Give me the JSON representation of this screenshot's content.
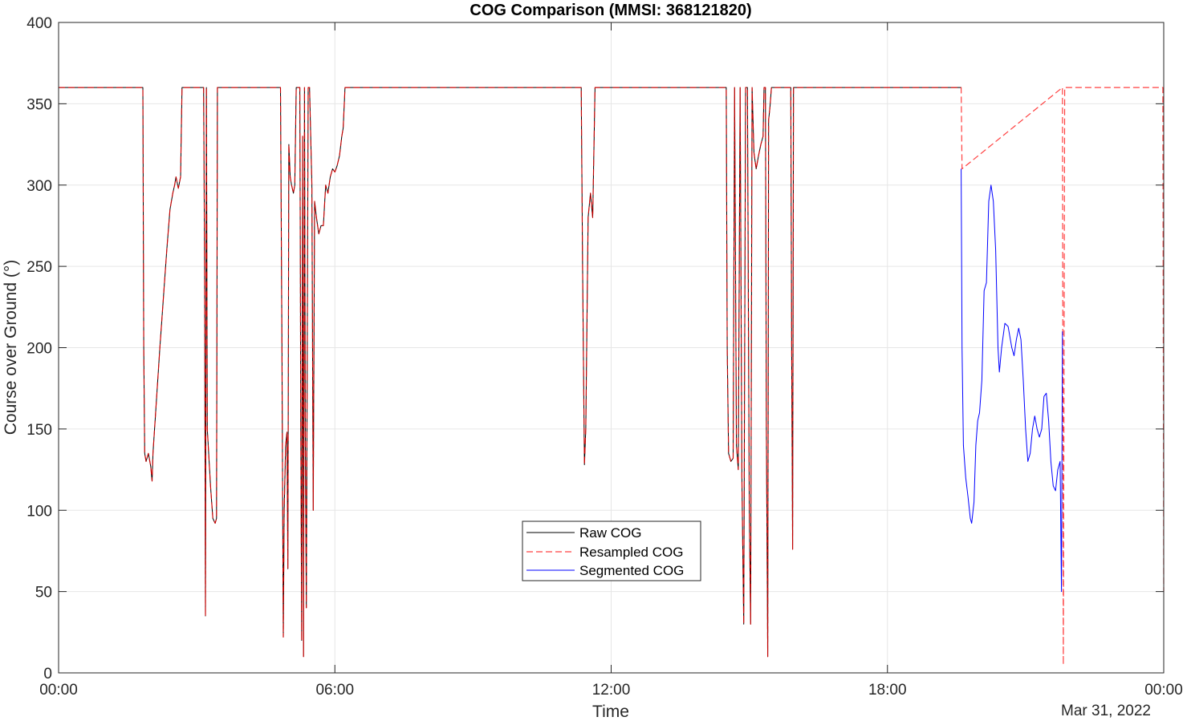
{
  "chart_data": {
    "type": "line",
    "title": "COG Comparison (MMSI: 368121820)",
    "xlabel": "Time",
    "ylabel": "Course over Ground (°)",
    "date_label": "Mar 31, 2022",
    "x_unit": "hours since 00:00 (Mar 30, 2022)",
    "xlim": [
      0,
      24
    ],
    "ylim": [
      0,
      400
    ],
    "x_ticks": [
      0,
      6,
      12,
      18,
      24
    ],
    "x_tick_labels": [
      "00:00",
      "06:00",
      "12:00",
      "18:00",
      "00:00"
    ],
    "y_ticks": [
      0,
      50,
      100,
      150,
      200,
      250,
      300,
      350,
      400
    ],
    "y_tick_labels": [
      "0",
      "50",
      "100",
      "150",
      "200",
      "250",
      "300",
      "350",
      "400"
    ],
    "grid": true,
    "legend_position": "center-bottom",
    "colors": {
      "raw": "#000000",
      "resampled": "#ff0000",
      "segmented": "#0000ff",
      "grid": "#e6e6e6",
      "axes": "#262626"
    },
    "series": [
      {
        "name": "Raw COG",
        "style": "solid",
        "color": "#000000",
        "points": [
          [
            0,
            360
          ],
          [
            1.83,
            360
          ],
          [
            1.85,
            200
          ],
          [
            1.87,
            135
          ],
          [
            1.9,
            130
          ],
          [
            1.95,
            135
          ],
          [
            2.0,
            127
          ],
          [
            2.03,
            118
          ],
          [
            2.05,
            135
          ],
          [
            2.2,
            200
          ],
          [
            2.35,
            260
          ],
          [
            2.42,
            285
          ],
          [
            2.48,
            295
          ],
          [
            2.52,
            300
          ],
          [
            2.55,
            305
          ],
          [
            2.6,
            298
          ],
          [
            2.65,
            305
          ],
          [
            2.68,
            360
          ],
          [
            3.15,
            360
          ],
          [
            3.17,
            250
          ],
          [
            3.19,
            35
          ],
          [
            3.21,
            360
          ],
          [
            3.23,
            150
          ],
          [
            3.3,
            115
          ],
          [
            3.35,
            95
          ],
          [
            3.4,
            92
          ],
          [
            3.43,
            95
          ],
          [
            3.45,
            360
          ],
          [
            4.82,
            360
          ],
          [
            4.85,
            200
          ],
          [
            4.88,
            22
          ],
          [
            4.9,
            100
          ],
          [
            4.93,
            140
          ],
          [
            4.96,
            148
          ],
          [
            4.98,
            64
          ],
          [
            5.0,
            325
          ],
          [
            5.03,
            305
          ],
          [
            5.06,
            300
          ],
          [
            5.1,
            295
          ],
          [
            5.13,
            300
          ],
          [
            5.16,
            360
          ],
          [
            5.24,
            360
          ],
          [
            5.26,
            150
          ],
          [
            5.28,
            20
          ],
          [
            5.3,
            330
          ],
          [
            5.32,
            10
          ],
          [
            5.34,
            360
          ],
          [
            5.36,
            140
          ],
          [
            5.38,
            40
          ],
          [
            5.42,
            360
          ],
          [
            5.45,
            360
          ],
          [
            5.5,
            300
          ],
          [
            5.53,
            100
          ],
          [
            5.56,
            290
          ],
          [
            5.6,
            280
          ],
          [
            5.65,
            270
          ],
          [
            5.7,
            275
          ],
          [
            5.75,
            275
          ],
          [
            5.8,
            300
          ],
          [
            5.85,
            295
          ],
          [
            5.9,
            305
          ],
          [
            5.95,
            310
          ],
          [
            6.0,
            308
          ],
          [
            6.05,
            312
          ],
          [
            6.1,
            318
          ],
          [
            6.15,
            330
          ],
          [
            6.18,
            335
          ],
          [
            6.22,
            360
          ],
          [
            11.35,
            360
          ],
          [
            11.38,
            250
          ],
          [
            11.42,
            128
          ],
          [
            11.45,
            150
          ],
          [
            11.5,
            280
          ],
          [
            11.55,
            295
          ],
          [
            11.6,
            280
          ],
          [
            11.65,
            360
          ],
          [
            14.5,
            360
          ],
          [
            14.52,
            200
          ],
          [
            14.55,
            135
          ],
          [
            14.6,
            130
          ],
          [
            14.65,
            132
          ],
          [
            14.68,
            360
          ],
          [
            14.72,
            140
          ],
          [
            14.76,
            125
          ],
          [
            14.8,
            360
          ],
          [
            14.84,
            120
          ],
          [
            14.88,
            30
          ],
          [
            14.92,
            360
          ],
          [
            14.96,
            360
          ],
          [
            15.0,
            100
          ],
          [
            15.03,
            30
          ],
          [
            15.06,
            360
          ],
          [
            15.1,
            320
          ],
          [
            15.15,
            310
          ],
          [
            15.2,
            318
          ],
          [
            15.25,
            325
          ],
          [
            15.3,
            330
          ],
          [
            15.32,
            360
          ],
          [
            15.35,
            360
          ],
          [
            15.37,
            150
          ],
          [
            15.4,
            10
          ],
          [
            15.42,
            340
          ],
          [
            15.45,
            348
          ],
          [
            15.48,
            360
          ],
          [
            15.9,
            360
          ],
          [
            15.92,
            200
          ],
          [
            15.94,
            76
          ],
          [
            15.96,
            360
          ],
          [
            19.6,
            360
          ]
        ]
      },
      {
        "name": "Resampled COG",
        "style": "dashed",
        "color": "#ff0000",
        "points": [
          [
            0,
            360
          ],
          [
            1.83,
            360
          ],
          [
            1.85,
            200
          ],
          [
            1.87,
            135
          ],
          [
            1.9,
            130
          ],
          [
            1.95,
            135
          ],
          [
            2.0,
            127
          ],
          [
            2.03,
            118
          ],
          [
            2.05,
            135
          ],
          [
            2.2,
            200
          ],
          [
            2.35,
            260
          ],
          [
            2.42,
            285
          ],
          [
            2.48,
            295
          ],
          [
            2.52,
            300
          ],
          [
            2.55,
            305
          ],
          [
            2.6,
            298
          ],
          [
            2.65,
            305
          ],
          [
            2.68,
            360
          ],
          [
            3.15,
            360
          ],
          [
            3.17,
            250
          ],
          [
            3.19,
            35
          ],
          [
            3.21,
            360
          ],
          [
            3.23,
            150
          ],
          [
            3.3,
            115
          ],
          [
            3.35,
            95
          ],
          [
            3.4,
            92
          ],
          [
            3.43,
            95
          ],
          [
            3.45,
            360
          ],
          [
            4.82,
            360
          ],
          [
            4.85,
            200
          ],
          [
            4.88,
            22
          ],
          [
            4.9,
            100
          ],
          [
            4.93,
            140
          ],
          [
            4.96,
            148
          ],
          [
            4.98,
            64
          ],
          [
            5.0,
            325
          ],
          [
            5.03,
            305
          ],
          [
            5.06,
            300
          ],
          [
            5.1,
            295
          ],
          [
            5.13,
            300
          ],
          [
            5.16,
            360
          ],
          [
            5.24,
            360
          ],
          [
            5.26,
            150
          ],
          [
            5.28,
            20
          ],
          [
            5.3,
            330
          ],
          [
            5.32,
            10
          ],
          [
            5.34,
            360
          ],
          [
            5.36,
            140
          ],
          [
            5.38,
            40
          ],
          [
            5.42,
            360
          ],
          [
            5.45,
            360
          ],
          [
            5.5,
            300
          ],
          [
            5.53,
            100
          ],
          [
            5.56,
            290
          ],
          [
            5.6,
            280
          ],
          [
            5.65,
            270
          ],
          [
            5.7,
            275
          ],
          [
            5.75,
            275
          ],
          [
            5.8,
            300
          ],
          [
            5.85,
            295
          ],
          [
            5.9,
            305
          ],
          [
            5.95,
            310
          ],
          [
            6.0,
            308
          ],
          [
            6.05,
            312
          ],
          [
            6.1,
            318
          ],
          [
            6.15,
            330
          ],
          [
            6.18,
            335
          ],
          [
            6.22,
            360
          ],
          [
            11.35,
            360
          ],
          [
            11.38,
            250
          ],
          [
            11.42,
            128
          ],
          [
            11.45,
            150
          ],
          [
            11.5,
            280
          ],
          [
            11.55,
            295
          ],
          [
            11.6,
            280
          ],
          [
            11.65,
            360
          ],
          [
            14.5,
            360
          ],
          [
            14.52,
            200
          ],
          [
            14.55,
            135
          ],
          [
            14.6,
            130
          ],
          [
            14.65,
            132
          ],
          [
            14.68,
            360
          ],
          [
            14.72,
            140
          ],
          [
            14.76,
            125
          ],
          [
            14.8,
            360
          ],
          [
            14.84,
            120
          ],
          [
            14.88,
            30
          ],
          [
            14.92,
            360
          ],
          [
            14.96,
            360
          ],
          [
            15.0,
            100
          ],
          [
            15.03,
            30
          ],
          [
            15.06,
            360
          ],
          [
            15.1,
            320
          ],
          [
            15.15,
            310
          ],
          [
            15.2,
            318
          ],
          [
            15.25,
            325
          ],
          [
            15.3,
            330
          ],
          [
            15.32,
            360
          ],
          [
            15.35,
            360
          ],
          [
            15.37,
            150
          ],
          [
            15.4,
            10
          ],
          [
            15.42,
            340
          ],
          [
            15.45,
            348
          ],
          [
            15.48,
            360
          ],
          [
            15.9,
            360
          ],
          [
            15.92,
            200
          ],
          [
            15.94,
            76
          ],
          [
            15.96,
            360
          ],
          [
            19.6,
            360
          ],
          [
            19.62,
            310
          ],
          [
            21.8,
            360
          ],
          [
            21.82,
            5
          ],
          [
            21.85,
            360
          ],
          [
            23.98,
            360
          ],
          [
            24.0,
            50
          ]
        ]
      },
      {
        "name": "Segmented COG",
        "style": "solid",
        "color": "#0000ff",
        "points": [
          [
            19.6,
            310
          ],
          [
            19.62,
            200
          ],
          [
            19.65,
            140
          ],
          [
            19.7,
            120
          ],
          [
            19.75,
            108
          ],
          [
            19.8,
            95
          ],
          [
            19.83,
            92
          ],
          [
            19.88,
            105
          ],
          [
            19.92,
            140
          ],
          [
            19.96,
            155
          ],
          [
            20.0,
            160
          ],
          [
            20.05,
            180
          ],
          [
            20.1,
            235
          ],
          [
            20.15,
            240
          ],
          [
            20.2,
            290
          ],
          [
            20.25,
            300
          ],
          [
            20.3,
            290
          ],
          [
            20.35,
            260
          ],
          [
            20.4,
            200
          ],
          [
            20.43,
            185
          ],
          [
            20.48,
            200
          ],
          [
            20.55,
            215
          ],
          [
            20.62,
            213
          ],
          [
            20.7,
            200
          ],
          [
            20.75,
            195
          ],
          [
            20.8,
            205
          ],
          [
            20.85,
            212
          ],
          [
            20.9,
            205
          ],
          [
            20.95,
            180
          ],
          [
            21.0,
            150
          ],
          [
            21.05,
            130
          ],
          [
            21.1,
            135
          ],
          [
            21.15,
            150
          ],
          [
            21.2,
            158
          ],
          [
            21.25,
            150
          ],
          [
            21.3,
            145
          ],
          [
            21.35,
            150
          ],
          [
            21.4,
            170
          ],
          [
            21.45,
            172
          ],
          [
            21.5,
            155
          ],
          [
            21.55,
            130
          ],
          [
            21.6,
            115
          ],
          [
            21.65,
            112
          ],
          [
            21.7,
            125
          ],
          [
            21.75,
            130
          ],
          [
            21.78,
            50
          ],
          [
            21.8,
            210
          ]
        ]
      }
    ]
  }
}
